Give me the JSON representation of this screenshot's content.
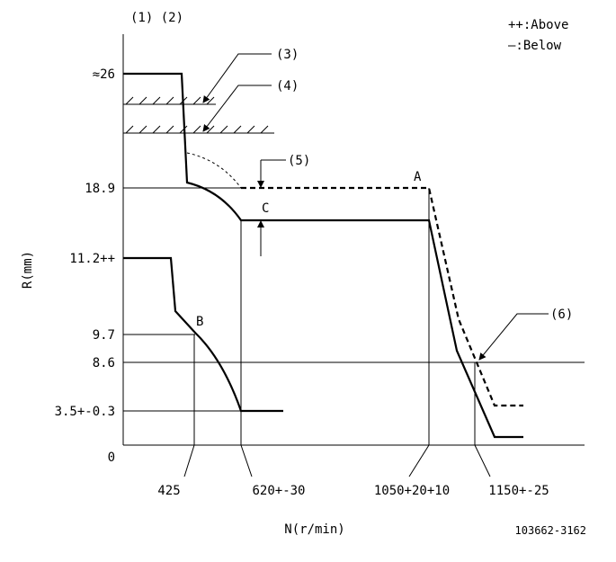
{
  "header": {
    "refs": "(1) (2)",
    "legend_above": "++:Above",
    "legend_below": "—:Below"
  },
  "callouts": [
    "(3)",
    "(4)",
    "(5)",
    "(6)"
  ],
  "points": [
    "A",
    "B",
    "C"
  ],
  "y_axis": {
    "label": "R(mm)",
    "ticks": [
      "≈26",
      "18.9",
      "11.2++",
      "9.7",
      "8.6",
      "3.5+-0.3",
      "0"
    ]
  },
  "x_axis": {
    "label": "N(r/min)",
    "ticks": [
      "425",
      "620+-30",
      "1050+20+10",
      "1150+-25"
    ]
  },
  "footer": {
    "code": "103662-3162"
  }
}
